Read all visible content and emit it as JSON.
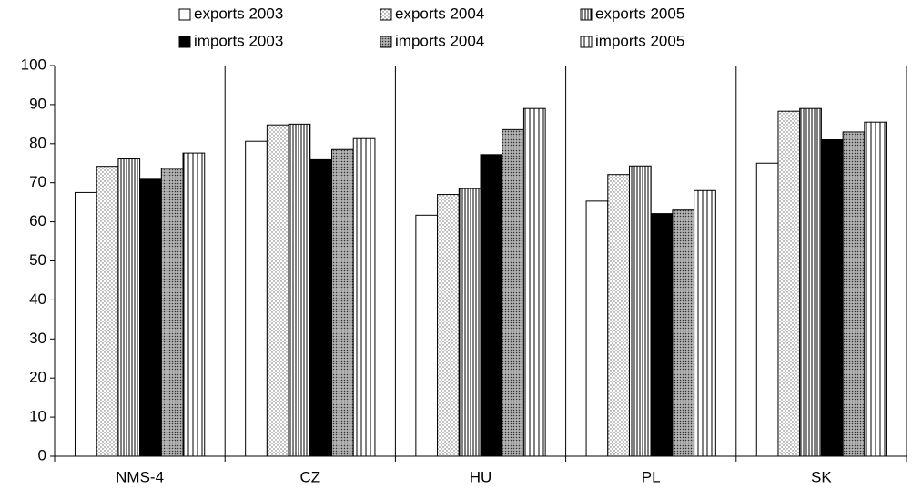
{
  "chart_data": {
    "type": "bar",
    "categories": [
      "NMS-4",
      "CZ",
      "HU",
      "PL",
      "SK"
    ],
    "series": [
      {
        "name": "exports 2003",
        "color": "#ffffff",
        "pattern": "solid",
        "values": [
          67.5,
          80.6,
          61.7,
          65.3,
          75.0
        ]
      },
      {
        "name": "exports 2004",
        "color": "#ffffff",
        "pattern": "dots",
        "values": [
          74.2,
          84.8,
          67.0,
          72.1,
          88.3
        ]
      },
      {
        "name": "exports 2005",
        "color": "#ffffff",
        "pattern": "dense-vertical",
        "values": [
          76.1,
          85.0,
          68.5,
          74.3,
          89.0
        ]
      },
      {
        "name": "imports 2003",
        "color": "#000000",
        "pattern": "solid",
        "values": [
          70.9,
          75.9,
          77.2,
          62.1,
          81.0
        ]
      },
      {
        "name": "imports 2004",
        "color": "#808080",
        "pattern": "crosshatch",
        "values": [
          73.7,
          78.5,
          83.6,
          63.0,
          83.0
        ]
      },
      {
        "name": "imports 2005",
        "color": "#ffffff",
        "pattern": "sparse-vertical",
        "values": [
          77.6,
          81.3,
          89.0,
          68.0,
          85.5
        ]
      }
    ],
    "ylim": [
      0,
      100
    ],
    "yticks": [
      0,
      10,
      20,
      30,
      40,
      50,
      60,
      70,
      80,
      90,
      100
    ],
    "category_separators": true,
    "legend": "top"
  }
}
